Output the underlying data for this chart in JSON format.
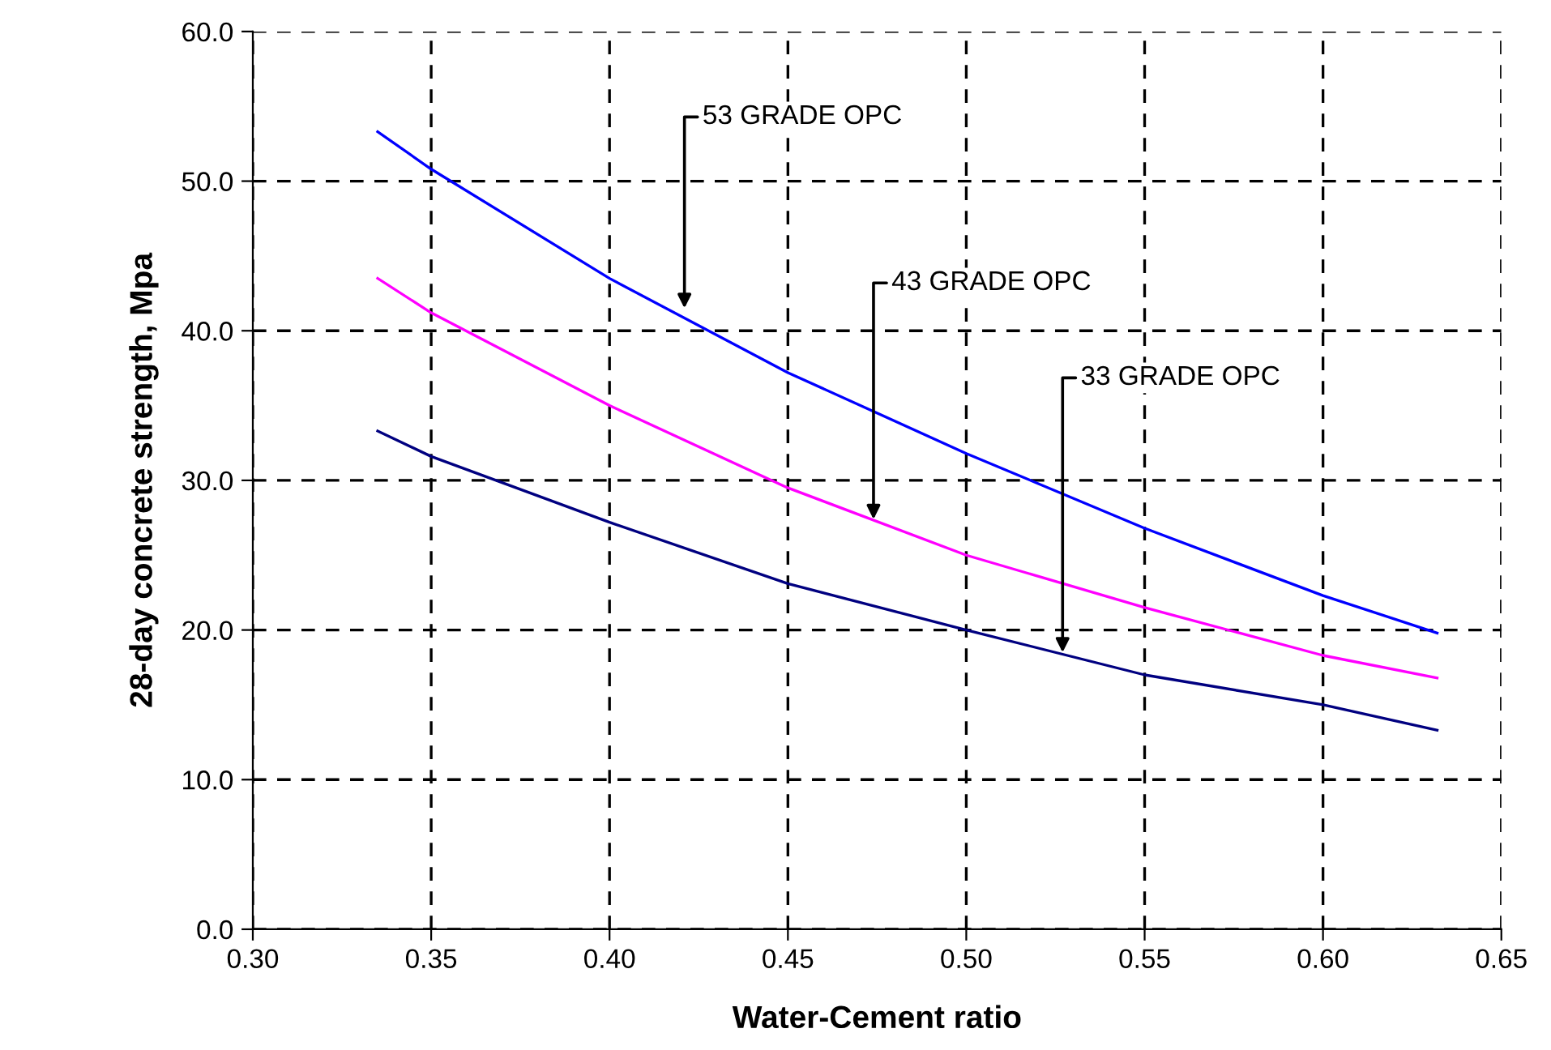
{
  "chart_data": {
    "type": "line",
    "xlabel": "Water-Cement ratio",
    "ylabel": "28-day concrete strength, Mpa",
    "x": [
      0.335,
      0.35,
      0.4,
      0.45,
      0.5,
      0.55,
      0.6,
      0.632
    ],
    "series": [
      {
        "color": "#0000ff",
        "values": [
          53.3,
          50.8,
          43.5,
          37.2,
          31.8,
          26.8,
          22.3,
          19.8
        ]
      },
      {
        "color": "#ff00ff",
        "values": [
          43.5,
          41.2,
          35.0,
          29.5,
          25.0,
          21.5,
          18.3,
          16.8
        ]
      },
      {
        "color": "#000080",
        "values": [
          33.3,
          31.6,
          27.2,
          23.1,
          20.0,
          17.0,
          15.0,
          13.3
        ]
      }
    ],
    "annotations": [
      {
        "text": "53 GRADE OPC",
        "x": 0.421,
        "y": 41.5
      },
      {
        "text": "43 GRADE OPC",
        "x": 0.474,
        "y": 27.4
      },
      {
        "text": "33 GRADE OPC",
        "x": 0.527,
        "y": 18.5
      }
    ],
    "xlim": [
      0.3,
      0.65
    ],
    "ylim": [
      0,
      60
    ],
    "xticks": [
      {
        "value": 0.3,
        "label": "0.30"
      },
      {
        "value": 0.35,
        "label": "0.35"
      },
      {
        "value": 0.4,
        "label": "0.40"
      },
      {
        "value": 0.45,
        "label": "0.45"
      },
      {
        "value": 0.5,
        "label": "0.50"
      },
      {
        "value": 0.55,
        "label": "0.55"
      },
      {
        "value": 0.6,
        "label": "0.60"
      },
      {
        "value": 0.65,
        "label": "0.65"
      }
    ],
    "yticks": [
      {
        "value": 0,
        "label": "0.0"
      },
      {
        "value": 10,
        "label": "10.0"
      },
      {
        "value": 20,
        "label": "20.0"
      },
      {
        "value": 30,
        "label": "30.0"
      },
      {
        "value": 40,
        "label": "40.0"
      },
      {
        "value": 50,
        "label": "50.0"
      },
      {
        "value": 60,
        "label": "60.0"
      }
    ],
    "grid": true,
    "marker": "none",
    "line_style": "solid"
  }
}
